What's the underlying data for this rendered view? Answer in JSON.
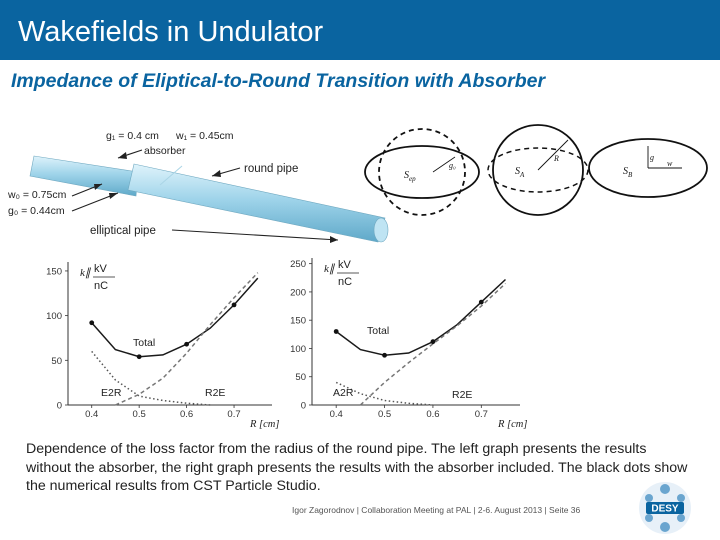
{
  "header": {
    "title": "Wakefields in Undulator"
  },
  "subtitle": "Impedance of Eliptical-to-Round Transition with Absorber",
  "pipe_labels": {
    "g1": "g₁ = 0.4 cm",
    "w1": "w₁ = 0.45cm",
    "absorber": "absorber",
    "round_pipe": "round pipe",
    "w0": "w₀ = 0.75cm",
    "g0": "g₀ = 0.44cm",
    "elliptical_pipe": "elliptical pipe"
  },
  "cross_sections": {
    "sep": "S_ep",
    "sep_main": "S",
    "sep_sub": "ep",
    "g0": "g₀",
    "sa_main": "S",
    "sa_sub": "A",
    "r": "R",
    "sb_main": "S",
    "sb_sub": "B",
    "g": "g",
    "w": "w"
  },
  "chart_data": [
    {
      "type": "line",
      "ylabel_top": "k∥",
      "yunit_num": "kV",
      "yunit_den": "nC",
      "xlabel": "R [cm]",
      "xlim": [
        0.35,
        0.78
      ],
      "ylim": [
        0,
        160
      ],
      "xticks": [
        "0.4",
        "0.5",
        "0.6",
        "0.7"
      ],
      "yticks": [
        "0",
        "50",
        "100",
        "150"
      ],
      "series": [
        {
          "name": "Total",
          "style": "solid",
          "x": [
            0.4,
            0.45,
            0.5,
            0.55,
            0.6,
            0.65,
            0.7,
            0.75
          ],
          "y": [
            92,
            62,
            54,
            56,
            68,
            86,
            112,
            142
          ]
        },
        {
          "name": "E2R",
          "style": "dotted",
          "x": [
            0.4,
            0.45,
            0.5,
            0.55,
            0.6,
            0.65
          ],
          "y": [
            60,
            28,
            10,
            5,
            2,
            0
          ]
        },
        {
          "name": "R2E",
          "style": "dashed",
          "x": [
            0.45,
            0.5,
            0.55,
            0.6,
            0.65,
            0.7,
            0.75
          ],
          "y": [
            0,
            12,
            30,
            58,
            90,
            120,
            148
          ]
        }
      ],
      "dots": {
        "x": [
          0.4,
          0.5,
          0.6,
          0.7
        ],
        "y": [
          92,
          54,
          68,
          112
        ]
      }
    },
    {
      "type": "line",
      "ylabel_top": "k∥",
      "yunit_num": "kV",
      "yunit_den": "nC",
      "xlabel": "R [cm]",
      "xlim": [
        0.35,
        0.78
      ],
      "ylim": [
        0,
        260
      ],
      "xticks": [
        "0.4",
        "0.5",
        "0.6",
        "0.7"
      ],
      "yticks": [
        "0",
        "50",
        "100",
        "150",
        "200",
        "250"
      ],
      "series": [
        {
          "name": "Total",
          "style": "solid",
          "x": [
            0.4,
            0.45,
            0.5,
            0.55,
            0.6,
            0.65,
            0.7,
            0.75
          ],
          "y": [
            130,
            98,
            88,
            92,
            112,
            142,
            182,
            222
          ]
        },
        {
          "name": "A2R",
          "style": "dotted",
          "x": [
            0.4,
            0.45,
            0.5,
            0.55,
            0.6
          ],
          "y": [
            40,
            20,
            8,
            3,
            0
          ]
        },
        {
          "name": "R2E",
          "style": "dashed",
          "x": [
            0.45,
            0.5,
            0.55,
            0.6,
            0.65,
            0.7,
            0.75
          ],
          "y": [
            0,
            40,
            75,
            108,
            140,
            175,
            215
          ]
        }
      ],
      "dots": {
        "x": [
          0.4,
          0.5,
          0.6,
          0.7
        ],
        "y": [
          130,
          88,
          112,
          182
        ]
      }
    }
  ],
  "caption": "Dependence of the loss factor from the radius of the round pipe. The left graph presents the results without the absorber, the right graph presents the results with the absorber included. The black dots show the numerical results from CST Particle Studio.",
  "footer": "Igor Zagorodnov | Collaboration Meeting at PAL | 2-6. August 2013 | Seite 36",
  "logo": {
    "text": "DESY",
    "color": "#0a64a0"
  }
}
